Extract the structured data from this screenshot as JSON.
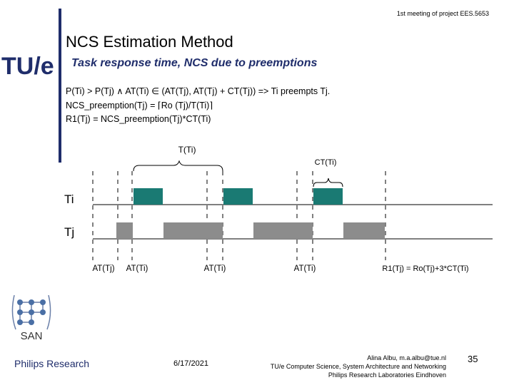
{
  "header": {
    "meeting": "1st meeting of project EES.5653",
    "logo_text": "TU/e",
    "title": "NCS Estimation Method",
    "subtitle": "Task response time, NCS due to preemptions"
  },
  "formulas": {
    "line1": "P(Ti) > P(Tj) ∧ AT(Ti) ∈ (AT(Tj), AT(Tj) + CT(Tj)) => Ti preempts Tj.",
    "line2": "NCS_preemption(Tj) = ⌈Ro (Tj)/T(Ti)⌉",
    "line3": "R1(Tj) = NCS_preemption(Tj)*CT(Ti)"
  },
  "diagram": {
    "period_label": "T(Ti)",
    "ct_label": "CT(Ti)",
    "task_i": "Ti",
    "task_j": "Tj",
    "labels": [
      "AT(Tj)",
      "AT(Ti)",
      "AT(Ti)",
      "AT(Ti)"
    ],
    "result": "R1(Tj) = Ro(Tj)+3*CT(Ti)",
    "colors": {
      "ti_block": "#1a7a73",
      "tj_block": "#8c8c8c"
    }
  },
  "footer": {
    "company": "Philips Research",
    "date": "6/17/2021",
    "contact_line1": "Alina Albu, m.a.albu@tue.nl",
    "contact_line2": "TU/e Computer Science, System Architecture and Networking",
    "contact_line3": "Philips Research Laboratories Eindhoven",
    "page": "35",
    "san_text": "SAN"
  }
}
